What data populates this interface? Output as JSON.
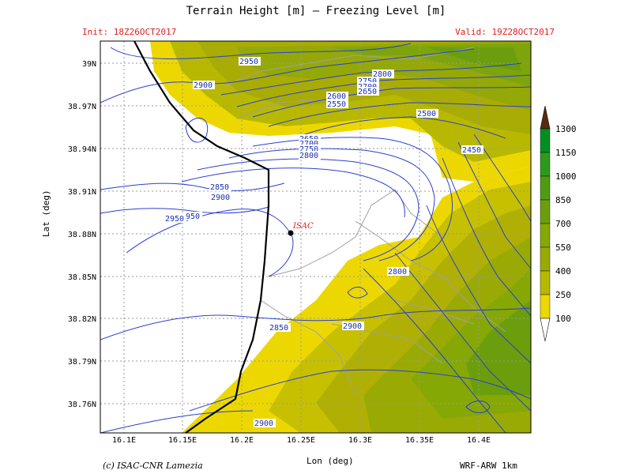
{
  "header": {
    "title": "Terrain Height [m] — Freezing Level [m]",
    "init": "Init: 18Z26OCT2017",
    "valid": "Valid: 19Z28OCT2017"
  },
  "axes": {
    "xlabel": "Lon (deg)",
    "ylabel": "Lat (deg)",
    "xticks": [
      "16.1E",
      "16.15E",
      "16.2E",
      "16.25E",
      "16.3E",
      "16.35E",
      "16.4E"
    ],
    "yticks": [
      "39N",
      "38.97N",
      "38.94N",
      "38.91N",
      "38.88N",
      "38.85N",
      "38.82N",
      "38.79N",
      "38.76N"
    ]
  },
  "colorbar": {
    "levels": [
      "1300",
      "1150",
      "1000",
      "850",
      "700",
      "550",
      "400",
      "250",
      "100"
    ],
    "colors": [
      "#009020",
      "#2d9a1c",
      "#4f9c12",
      "#6b9e0c",
      "#86a804",
      "#9aaa04",
      "#b8b800",
      "#d0c800",
      "#ecd800"
    ],
    "top_color": "#5a2a10"
  },
  "contour_labels": [
    "2950",
    "2900",
    "2800",
    "2750",
    "2700",
    "2650",
    "2600",
    "2550",
    "2500",
    "2450",
    "2850",
    "2950",
    "950",
    "2800",
    "2900",
    "2850",
    "2900",
    "2650",
    "2700",
    "2750",
    "2800"
  ],
  "station": {
    "name": "ISAC"
  },
  "footer": {
    "credit": "(c) ISAC-CNR Lamezia",
    "model": "WRF-ARW 1km"
  }
}
